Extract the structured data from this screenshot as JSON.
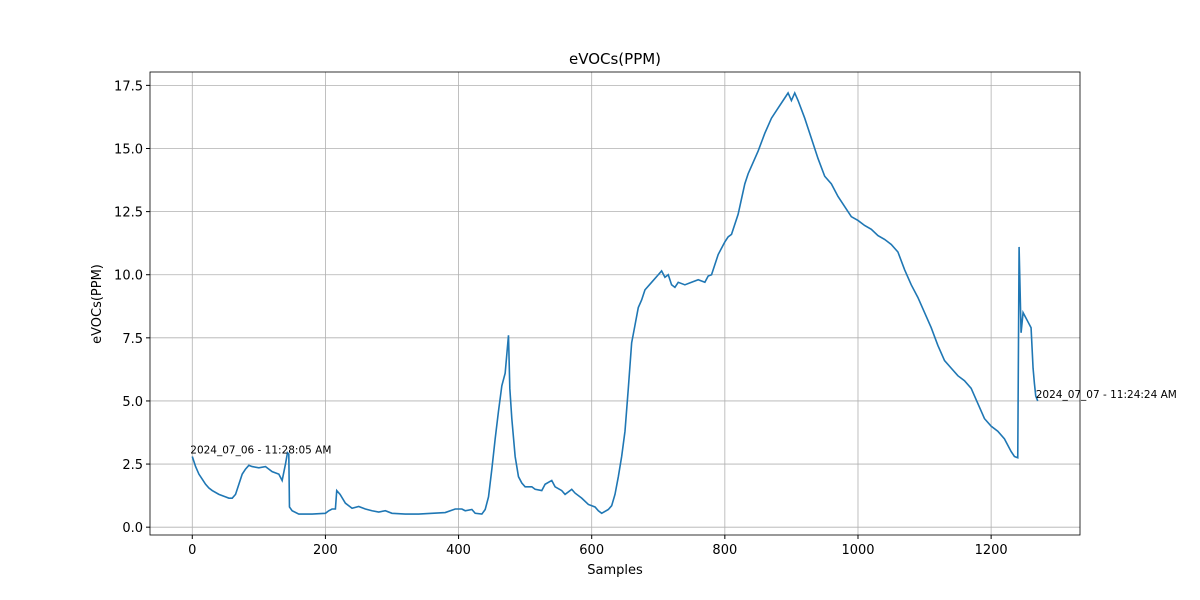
{
  "chart_data": {
    "type": "line",
    "title": "eVOCs(PPM)",
    "x_label": "Samples",
    "y_label": "eVOCs(PPM)",
    "x": [
      0,
      5,
      10,
      15,
      20,
      25,
      30,
      40,
      50,
      55,
      60,
      65,
      70,
      75,
      80,
      85,
      90,
      100,
      110,
      115,
      120,
      130,
      135,
      140,
      143,
      145,
      146,
      150,
      160,
      180,
      200,
      205,
      210,
      215,
      217,
      222,
      230,
      240,
      250,
      260,
      270,
      280,
      290,
      300,
      320,
      340,
      360,
      380,
      395,
      405,
      410,
      420,
      425,
      435,
      440,
      445,
      450,
      455,
      460,
      465,
      470,
      473,
      475,
      477,
      480,
      485,
      490,
      495,
      500,
      510,
      515,
      525,
      530,
      540,
      545,
      555,
      560,
      570,
      575,
      585,
      595,
      605,
      610,
      615,
      625,
      630,
      635,
      640,
      645,
      650,
      655,
      660,
      665,
      670,
      675,
      680,
      690,
      700,
      705,
      710,
      715,
      720,
      725,
      730,
      740,
      750,
      760,
      770,
      775,
      780,
      785,
      790,
      800,
      805,
      810,
      820,
      825,
      830,
      835,
      840,
      850,
      860,
      870,
      880,
      890,
      895,
      900,
      905,
      910,
      920,
      930,
      940,
      950,
      960,
      970,
      980,
      990,
      1000,
      1010,
      1020,
      1030,
      1040,
      1050,
      1060,
      1070,
      1080,
      1090,
      1100,
      1110,
      1120,
      1130,
      1140,
      1150,
      1160,
      1170,
      1180,
      1190,
      1200,
      1210,
      1220,
      1230,
      1235,
      1240,
      1242,
      1245,
      1248,
      1252,
      1256,
      1260,
      1263,
      1265,
      1267,
      1270
    ],
    "series": [
      {
        "name": "eVOCs(PPM)",
        "color": "#1f77b4",
        "values": [
          2.8,
          2.4,
          2.1,
          1.9,
          1.7,
          1.55,
          1.45,
          1.3,
          1.2,
          1.15,
          1.15,
          1.3,
          1.7,
          2.1,
          2.3,
          2.45,
          2.4,
          2.35,
          2.4,
          2.3,
          2.2,
          2.1,
          1.85,
          2.5,
          2.95,
          2.9,
          0.8,
          0.65,
          0.52,
          0.52,
          0.55,
          0.65,
          0.72,
          0.72,
          1.45,
          1.3,
          0.95,
          0.75,
          0.82,
          0.72,
          0.65,
          0.6,
          0.65,
          0.55,
          0.52,
          0.52,
          0.55,
          0.58,
          0.72,
          0.72,
          0.65,
          0.7,
          0.55,
          0.52,
          0.7,
          1.2,
          2.3,
          3.5,
          4.6,
          5.6,
          6.1,
          7.0,
          7.6,
          5.5,
          4.3,
          2.8,
          2.0,
          1.75,
          1.6,
          1.6,
          1.5,
          1.45,
          1.7,
          1.85,
          1.6,
          1.45,
          1.3,
          1.5,
          1.35,
          1.15,
          0.9,
          0.8,
          0.65,
          0.55,
          0.7,
          0.85,
          1.3,
          2.0,
          2.8,
          3.8,
          5.5,
          7.3,
          8.0,
          8.7,
          9.0,
          9.4,
          9.7,
          10.0,
          10.15,
          9.9,
          10.0,
          9.6,
          9.5,
          9.7,
          9.6,
          9.7,
          9.8,
          9.7,
          9.95,
          10.0,
          10.4,
          10.8,
          11.3,
          11.5,
          11.6,
          12.4,
          13.0,
          13.6,
          14.0,
          14.3,
          14.9,
          15.6,
          16.2,
          16.6,
          17.0,
          17.2,
          16.9,
          17.2,
          16.9,
          16.2,
          15.4,
          14.6,
          13.9,
          13.6,
          13.1,
          12.7,
          12.3,
          12.15,
          11.95,
          11.8,
          11.55,
          11.4,
          11.2,
          10.9,
          10.2,
          9.6,
          9.1,
          8.5,
          7.9,
          7.2,
          6.6,
          6.3,
          6.0,
          5.8,
          5.5,
          4.9,
          4.3,
          4.0,
          3.8,
          3.5,
          3.0,
          2.8,
          2.75,
          11.1,
          7.7,
          8.5,
          8.3,
          8.1,
          7.9,
          6.3,
          5.7,
          5.2,
          5.0
        ]
      }
    ],
    "annotations": [
      {
        "text": "2024_07_06 - 11:28:05 AM",
        "x": 0,
        "y": 2.8
      },
      {
        "text": "2024_07_07 - 11:24:24 AM",
        "x": 1270,
        "y": 5.0
      }
    ],
    "xlim": [
      -63.5,
      1333.5
    ],
    "ylim": [
      -0.31,
      18.03
    ],
    "xticks": [
      0,
      200,
      400,
      600,
      800,
      1000,
      1200
    ],
    "yticks": [
      {
        "value": 0,
        "label": "0.0"
      },
      2.5,
      {
        "value": 5,
        "label": "5.0"
      },
      7.5,
      {
        "value": 10,
        "label": "10.0"
      },
      12.5,
      {
        "value": 15,
        "label": "15.0"
      },
      17.5
    ],
    "grid": true
  }
}
